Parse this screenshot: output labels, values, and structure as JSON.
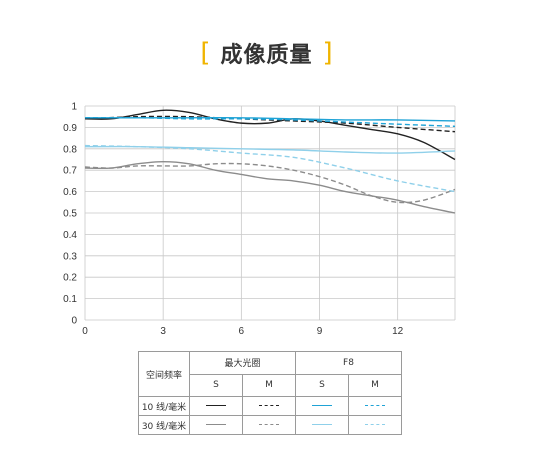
{
  "header": {
    "bracket_open": "[",
    "title": "成像质量",
    "bracket_close": "]"
  },
  "chart_data": {
    "type": "line",
    "title": "",
    "xlabel": "",
    "ylabel": "",
    "xlim": [
      0,
      14.2
    ],
    "ylim": [
      0,
      1
    ],
    "x_ticks": [
      "0",
      "3",
      "6",
      "9",
      "12"
    ],
    "y_ticks": [
      "0",
      "0.1",
      "0.2",
      "0.3",
      "0.4",
      "0.5",
      "0.6",
      "0.7",
      "0.8",
      "0.9",
      "1"
    ],
    "grid": true,
    "series": [
      {
        "name": "10线/毫米 最大光圈 S",
        "color": "#222222",
        "dash": false,
        "x": [
          0,
          1,
          2,
          3,
          4,
          5,
          6,
          7,
          8,
          9,
          10,
          11,
          12,
          13,
          14.2
        ],
        "y": [
          0.94,
          0.94,
          0.96,
          0.98,
          0.97,
          0.94,
          0.92,
          0.92,
          0.94,
          0.93,
          0.91,
          0.89,
          0.87,
          0.83,
          0.75
        ]
      },
      {
        "name": "10线/毫米 最大光圈 M",
        "color": "#222222",
        "dash": true,
        "x": [
          0,
          2,
          4,
          6,
          8,
          10,
          12,
          14.2
        ],
        "y": [
          0.94,
          0.95,
          0.95,
          0.94,
          0.93,
          0.92,
          0.9,
          0.88
        ]
      },
      {
        "name": "10线/毫米 F8 S",
        "color": "#1fa3d6",
        "dash": false,
        "x": [
          0,
          2,
          4,
          6,
          8,
          10,
          12,
          14.2
        ],
        "y": [
          0.945,
          0.945,
          0.945,
          0.945,
          0.94,
          0.935,
          0.935,
          0.93
        ]
      },
      {
        "name": "10线/毫米 F8 M",
        "color": "#1fa3d6",
        "dash": true,
        "x": [
          0,
          2,
          4,
          6,
          8,
          10,
          12,
          14.2
        ],
        "y": [
          0.945,
          0.945,
          0.94,
          0.94,
          0.935,
          0.925,
          0.915,
          0.905
        ]
      },
      {
        "name": "30线/毫米 最大光圈 S",
        "color": "#8c8c8c",
        "dash": false,
        "x": [
          0,
          1,
          2,
          3,
          4,
          5,
          6,
          7,
          8,
          9,
          10,
          11,
          12,
          13,
          14.2
        ],
        "y": [
          0.71,
          0.71,
          0.73,
          0.74,
          0.73,
          0.7,
          0.68,
          0.66,
          0.65,
          0.63,
          0.6,
          0.58,
          0.56,
          0.53,
          0.5
        ]
      },
      {
        "name": "30线/毫米 最大光圈 M",
        "color": "#8c8c8c",
        "dash": true,
        "x": [
          0,
          1,
          2,
          3,
          4,
          5,
          6,
          7,
          8,
          9,
          10,
          11,
          12,
          13,
          14.2
        ],
        "y": [
          0.715,
          0.71,
          0.72,
          0.72,
          0.72,
          0.73,
          0.73,
          0.72,
          0.7,
          0.67,
          0.63,
          0.58,
          0.55,
          0.56,
          0.61
        ]
      },
      {
        "name": "30线/毫米 F8 S",
        "color": "#8fd0ea",
        "dash": false,
        "x": [
          0,
          2,
          4,
          6,
          8,
          10,
          12,
          14.2
        ],
        "y": [
          0.81,
          0.81,
          0.805,
          0.8,
          0.795,
          0.785,
          0.78,
          0.79
        ]
      },
      {
        "name": "30线/毫米 F8 M",
        "color": "#8fd0ea",
        "dash": true,
        "x": [
          0,
          2,
          4,
          6,
          8,
          10,
          12,
          14.2
        ],
        "y": [
          0.815,
          0.81,
          0.8,
          0.78,
          0.76,
          0.71,
          0.65,
          0.6
        ]
      }
    ]
  },
  "legend": {
    "header_row_label": "空间频率",
    "group_1": "最大光圈",
    "group_2": "F8",
    "sub_s_1": "S",
    "sub_m_1": "M",
    "sub_s_2": "S",
    "sub_m_2": "M",
    "row_1_label": "10 线/毫米",
    "row_2_label": "30 线/毫米"
  }
}
